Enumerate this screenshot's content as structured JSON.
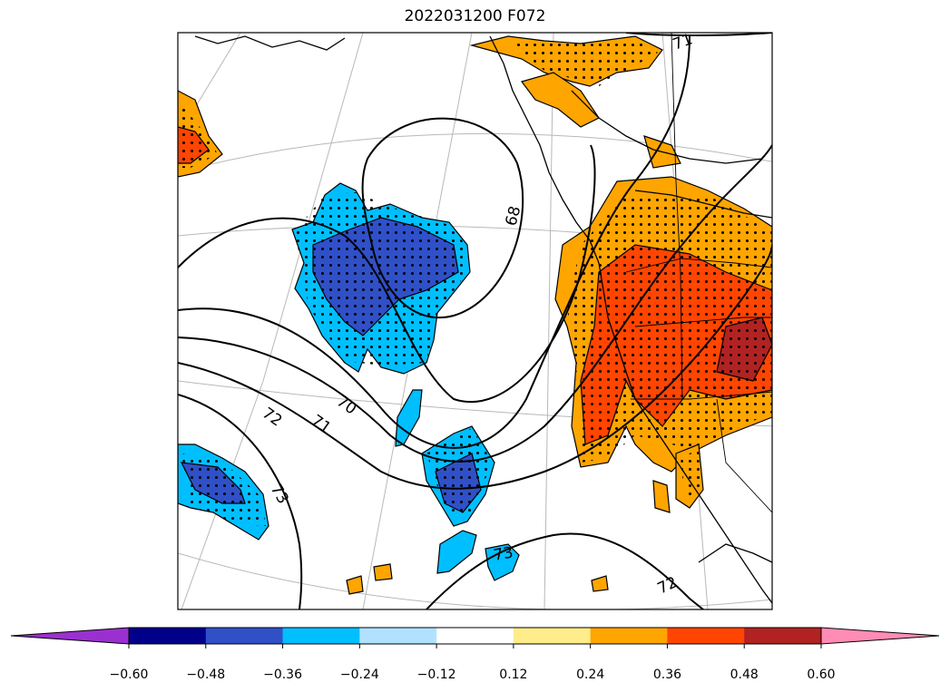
{
  "title": "2022031200 F072",
  "contour_labels": [
    "71",
    "68",
    "70",
    "71",
    "72",
    "73",
    "73",
    "72"
  ],
  "colorbar": {
    "colors": [
      "#9b30d0",
      "#00008b",
      "#3050c8",
      "#00bfff",
      "#b0e2ff",
      "#ffffff",
      "#ffec8b",
      "#ffa500",
      "#ff4500",
      "#b22222",
      "#ff8cb4"
    ],
    "tick_labels": [
      "−0.60",
      "−0.48",
      "−0.36",
      "−0.24",
      "−0.12",
      "0.12",
      "0.24",
      "0.36",
      "0.48",
      "0.60"
    ]
  },
  "colors": {
    "orange": "#ffa500",
    "red_orange": "#ff4500",
    "dark_red": "#b22222",
    "sky_blue": "#00bfff",
    "royal_blue": "#3050c8"
  }
}
